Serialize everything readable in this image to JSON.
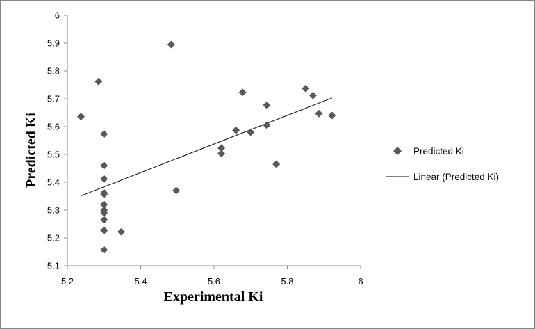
{
  "chart_data": {
    "type": "scatter",
    "title": "",
    "xlabel": "Experimental  Ki",
    "ylabel": "Predicted  Ki",
    "xlim": [
      5.2,
      6
    ],
    "ylim": [
      5.1,
      6
    ],
    "xticks": [
      5.2,
      5.4,
      5.6,
      5.8,
      6
    ],
    "xtick_labels": [
      "5.2",
      "5.4",
      "5.6",
      "5.8",
      "6"
    ],
    "yticks": [
      5.1,
      5.2,
      5.3,
      5.4,
      5.5,
      5.6,
      5.7,
      5.8,
      5.9,
      6
    ],
    "ytick_labels": [
      "5.1",
      "5.2",
      "5.3",
      "5.4",
      "5.5",
      "5.6",
      "5.7",
      "5.8",
      "5.9",
      "6"
    ],
    "grid": false,
    "legend_position": "right",
    "series": [
      {
        "name": "Predicted Ki",
        "marker": "diamond",
        "color": "#595959",
        "x": [
          5.237,
          5.285,
          5.3,
          5.3,
          5.3,
          5.3,
          5.3,
          5.3,
          5.3,
          5.3,
          5.3,
          5.3,
          5.3,
          5.3,
          5.347,
          5.483,
          5.497,
          5.62,
          5.62,
          5.66,
          5.678,
          5.7,
          5.744,
          5.744,
          5.77,
          5.85,
          5.87,
          5.886,
          5.922
        ],
        "y": [
          5.636,
          5.762,
          5.573,
          5.46,
          5.412,
          5.362,
          5.357,
          5.32,
          5.3,
          5.29,
          5.265,
          5.227,
          5.157,
          5.227,
          5.222,
          5.895,
          5.37,
          5.523,
          5.503,
          5.587,
          5.723,
          5.58,
          5.677,
          5.605,
          5.465,
          5.737,
          5.712,
          5.647,
          5.64
        ]
      }
    ],
    "trendline": {
      "name": "Linear (Predicted Ki)",
      "type": "linear",
      "color": "#000000",
      "x": [
        5.237,
        5.922
      ],
      "y": [
        5.351,
        5.703
      ]
    }
  }
}
